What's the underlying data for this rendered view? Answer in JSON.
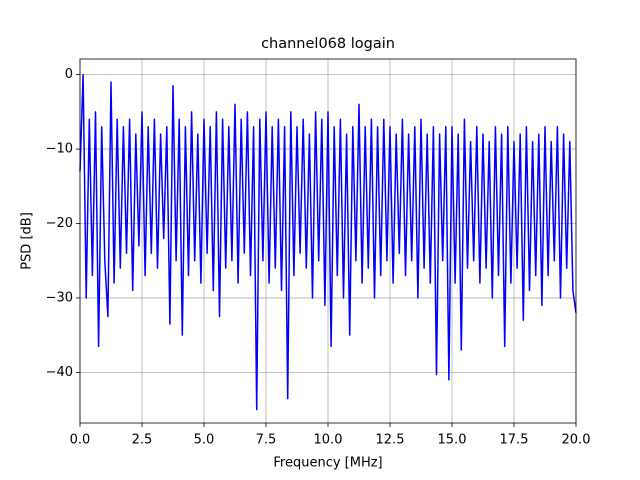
{
  "chart_data": {
    "type": "line",
    "title": "channel068 logain",
    "xlabel": "Frequency [MHz]",
    "ylabel": "PSD [dB]",
    "x": [
      0,
      0.125,
      0.25,
      0.375,
      0.5,
      0.625,
      0.75,
      0.875,
      1,
      1.125,
      1.25,
      1.375,
      1.5,
      1.625,
      1.75,
      1.875,
      2,
      2.125,
      2.25,
      2.375,
      2.5,
      2.625,
      2.75,
      2.875,
      3,
      3.125,
      3.25,
      3.375,
      3.5,
      3.625,
      3.75,
      3.875,
      4,
      4.125,
      4.25,
      4.375,
      4.5,
      4.625,
      4.75,
      4.875,
      5,
      5.125,
      5.25,
      5.375,
      5.5,
      5.625,
      5.75,
      5.875,
      6,
      6.125,
      6.25,
      6.375,
      6.5,
      6.625,
      6.75,
      6.875,
      7,
      7.125,
      7.25,
      7.375,
      7.5,
      7.625,
      7.75,
      7.875,
      8,
      8.125,
      8.25,
      8.375,
      8.5,
      8.625,
      8.75,
      8.875,
      9,
      9.125,
      9.25,
      9.375,
      9.5,
      9.625,
      9.75,
      9.875,
      10,
      10.125,
      10.25,
      10.375,
      10.5,
      10.625,
      10.75,
      10.875,
      11,
      11.125,
      11.25,
      11.375,
      11.5,
      11.625,
      11.75,
      11.875,
      12,
      12.125,
      12.25,
      12.375,
      12.5,
      12.625,
      12.75,
      12.875,
      13,
      13.125,
      13.25,
      13.375,
      13.5,
      13.625,
      13.75,
      13.875,
      14,
      14.125,
      14.25,
      14.375,
      14.5,
      14.625,
      14.75,
      14.875,
      15,
      15.125,
      15.25,
      15.375,
      15.5,
      15.625,
      15.75,
      15.875,
      16,
      16.125,
      16.25,
      16.375,
      16.5,
      16.625,
      16.75,
      16.875,
      17,
      17.125,
      17.25,
      17.375,
      17.5,
      17.625,
      17.75,
      17.875,
      18,
      18.125,
      18.25,
      18.375,
      18.5,
      18.625,
      18.75,
      18.875,
      19,
      19.125,
      19.25,
      19.375,
      19.5,
      19.625,
      19.75,
      19.875,
      20
    ],
    "series": [
      {
        "name": "PSD",
        "color": "#0000ff",
        "values": [
          -13,
          0,
          -30,
          -6,
          -27,
          -5,
          -36.5,
          -7,
          -25,
          -32.5,
          -1,
          -28,
          -6,
          -26,
          -7,
          -24,
          -6,
          -29,
          -8,
          -23,
          -5,
          -27,
          -7,
          -24,
          -6,
          -26,
          -8,
          -22,
          -7,
          -33.5,
          -1.5,
          -25,
          -6,
          -35,
          -7,
          -27,
          -5,
          -25,
          -8,
          -28,
          -6,
          -24,
          -7,
          -29,
          -5,
          -32.5,
          -6,
          -26,
          -7,
          -25,
          -4,
          -28,
          -6,
          -24,
          -5,
          -27,
          -7,
          -45,
          -6,
          -25,
          -5,
          -28,
          -7,
          -26,
          -6,
          -29,
          -7,
          -43.5,
          -5,
          -27,
          -7,
          -24,
          -6,
          -26,
          -8,
          -30,
          -5,
          -25,
          -6,
          -31,
          -5,
          -36.5,
          -7,
          -27,
          -6,
          -30,
          -8,
          -35,
          -7,
          -25,
          -4,
          -28,
          -7,
          -26,
          -6,
          -30,
          -7,
          -27,
          -6,
          -25,
          -7,
          -28,
          -8,
          -24,
          -6,
          -27,
          -8,
          -25,
          -7,
          -30,
          -6,
          -26,
          -8,
          -28,
          -7,
          -40.3,
          -8,
          -25,
          -7,
          -41,
          -7,
          -28,
          -8,
          -37,
          -6,
          -26,
          -9,
          -25,
          -7,
          -28,
          -8,
          -26,
          -9,
          -30,
          -7,
          -27,
          -8,
          -36.5,
          -7,
          -28,
          -9,
          -26,
          -8,
          -33,
          -7,
          -29,
          -9,
          -27,
          -8,
          -31,
          -7,
          -27,
          -9,
          -25,
          -7,
          -30,
          -8,
          -26,
          -9,
          -29,
          -32
        ]
      }
    ],
    "xlim": [
      0,
      20
    ],
    "xticks": [
      {
        "value": 0,
        "label": "0.0"
      },
      2.5,
      {
        "value": 5,
        "label": "5.0"
      },
      7.5,
      {
        "value": 10,
        "label": "10.0"
      },
      12.5,
      {
        "value": 15,
        "label": "15.0"
      },
      17.5,
      {
        "value": 20,
        "label": "20.0"
      }
    ],
    "ylim": [
      -46.8,
      2.1
    ],
    "yticks": [
      {
        "value": -40,
        "label": "−40"
      },
      {
        "value": -30,
        "label": "−30"
      },
      {
        "value": -20,
        "label": "−20"
      },
      {
        "value": -10,
        "label": "−10"
      },
      0
    ],
    "grid": true
  }
}
